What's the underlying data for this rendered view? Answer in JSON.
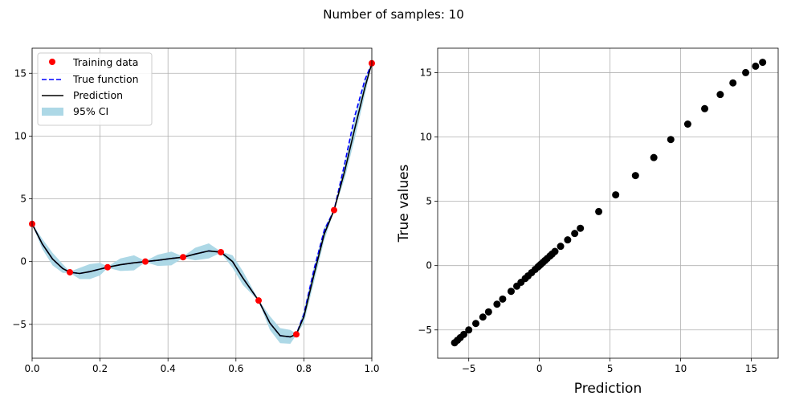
{
  "figure": {
    "suptitle": "Number of samples: 10"
  },
  "chart_data": [
    {
      "type": "line",
      "title": "",
      "xlabel": "",
      "ylabel": "",
      "xlim": [
        0,
        1
      ],
      "ylim": [
        -7.7,
        17
      ],
      "grid": true,
      "xticks": [
        0.0,
        0.2,
        0.4,
        0.6,
        0.8,
        1.0
      ],
      "xtick_labels": [
        "0.0",
        "0.2",
        "0.4",
        "0.6",
        "0.8",
        "1.0"
      ],
      "yticks": [
        -5,
        0,
        5,
        10,
        15
      ],
      "ytick_labels": [
        "−5",
        "0",
        "5",
        "10",
        "15"
      ],
      "legend": {
        "position": "upper-left",
        "entries": [
          "Training data",
          "True function",
          "Prediction",
          "95% CI"
        ]
      },
      "colors": {
        "training": "#ff0000",
        "true_function": "#0000ff",
        "prediction": "#000000",
        "ci": "#add8e6"
      },
      "training_data": {
        "x": [
          0.0,
          0.1111,
          0.2222,
          0.3333,
          0.4444,
          0.5556,
          0.6667,
          0.7778,
          0.8889,
          1.0
        ],
        "y": [
          3.0,
          -0.85,
          -0.45,
          0.0,
          0.35,
          0.75,
          -3.1,
          -5.8,
          4.1,
          15.8
        ]
      },
      "prediction": {
        "x": [
          0.0,
          0.03,
          0.06,
          0.09,
          0.1111,
          0.14,
          0.17,
          0.2,
          0.2222,
          0.26,
          0.3,
          0.3333,
          0.37,
          0.41,
          0.4444,
          0.48,
          0.52,
          0.5556,
          0.59,
          0.62,
          0.6667,
          0.7,
          0.73,
          0.76,
          0.7778,
          0.8,
          0.83,
          0.86,
          0.8889,
          0.92,
          0.95,
          0.98,
          1.0
        ],
        "y": [
          3.0,
          1.4,
          0.2,
          -0.55,
          -0.85,
          -0.95,
          -0.8,
          -0.6,
          -0.45,
          -0.25,
          -0.1,
          0.0,
          0.1,
          0.25,
          0.35,
          0.6,
          0.85,
          0.75,
          0.0,
          -1.3,
          -3.1,
          -4.9,
          -5.9,
          -6.0,
          -5.8,
          -4.4,
          -1.0,
          2.2,
          4.1,
          7.2,
          10.6,
          13.9,
          15.8
        ]
      },
      "true_function": {
        "x": [
          0.0,
          0.03,
          0.06,
          0.09,
          0.1111,
          0.14,
          0.17,
          0.2,
          0.2222,
          0.26,
          0.3,
          0.3333,
          0.37,
          0.41,
          0.4444,
          0.48,
          0.52,
          0.5556,
          0.59,
          0.62,
          0.6667,
          0.7,
          0.73,
          0.76,
          0.7778,
          0.8,
          0.83,
          0.86,
          0.8889,
          0.92,
          0.95,
          0.98,
          1.0
        ],
        "y": [
          3.0,
          1.4,
          0.2,
          -0.55,
          -0.85,
          -0.95,
          -0.8,
          -0.6,
          -0.45,
          -0.25,
          -0.1,
          0.0,
          0.1,
          0.25,
          0.35,
          0.6,
          0.85,
          0.75,
          0.0,
          -1.3,
          -3.1,
          -4.9,
          -5.9,
          -6.0,
          -5.8,
          -4.2,
          -0.6,
          2.5,
          4.1,
          7.8,
          11.6,
          14.5,
          15.8
        ]
      },
      "ci_halfwidth": [
        0.05,
        0.4,
        0.5,
        0.35,
        0.05,
        0.45,
        0.6,
        0.5,
        0.05,
        0.5,
        0.6,
        0.05,
        0.45,
        0.55,
        0.05,
        0.5,
        0.6,
        0.05,
        0.5,
        0.55,
        0.05,
        0.55,
        0.6,
        0.55,
        0.05,
        0.5,
        0.6,
        0.5,
        0.05,
        0.6,
        0.8,
        0.6,
        0.05
      ]
    },
    {
      "type": "scatter",
      "title": "",
      "xlabel": "Prediction",
      "ylabel": "True values",
      "xlim": [
        -7.2,
        16.9
      ],
      "ylim": [
        -7.2,
        16.9
      ],
      "grid": true,
      "xticks": [
        -5,
        0,
        5,
        10,
        15
      ],
      "xtick_labels": [
        "−5",
        "0",
        "5",
        "10",
        "15"
      ],
      "yticks": [
        -5,
        0,
        5,
        10,
        15
      ],
      "ytick_labels": [
        "−5",
        "0",
        "5",
        "10",
        "15"
      ],
      "color": "#000000",
      "x": [
        -6.0,
        -5.8,
        -5.6,
        -5.35,
        -5.0,
        -4.5,
        -4.0,
        -3.6,
        -3.0,
        -2.6,
        -2.0,
        -1.6,
        -1.3,
        -1.0,
        -0.8,
        -0.55,
        -0.3,
        -0.1,
        0.0,
        0.1,
        0.25,
        0.4,
        0.55,
        0.75,
        0.9,
        1.1,
        1.5,
        2.0,
        2.5,
        2.9,
        4.2,
        5.4,
        6.8,
        8.1,
        9.3,
        10.5,
        11.7,
        12.8,
        13.7,
        14.6,
        15.3,
        15.8
      ],
      "y": [
        -6.0,
        -5.8,
        -5.6,
        -5.35,
        -5.0,
        -4.5,
        -4.0,
        -3.6,
        -3.0,
        -2.6,
        -2.0,
        -1.6,
        -1.3,
        -1.0,
        -0.8,
        -0.55,
        -0.3,
        -0.1,
        0.0,
        0.1,
        0.25,
        0.4,
        0.55,
        0.75,
        0.9,
        1.1,
        1.5,
        2.0,
        2.5,
        2.9,
        4.2,
        5.5,
        7.0,
        8.4,
        9.8,
        11.0,
        12.2,
        13.3,
        14.2,
        15.0,
        15.5,
        15.8
      ]
    }
  ]
}
